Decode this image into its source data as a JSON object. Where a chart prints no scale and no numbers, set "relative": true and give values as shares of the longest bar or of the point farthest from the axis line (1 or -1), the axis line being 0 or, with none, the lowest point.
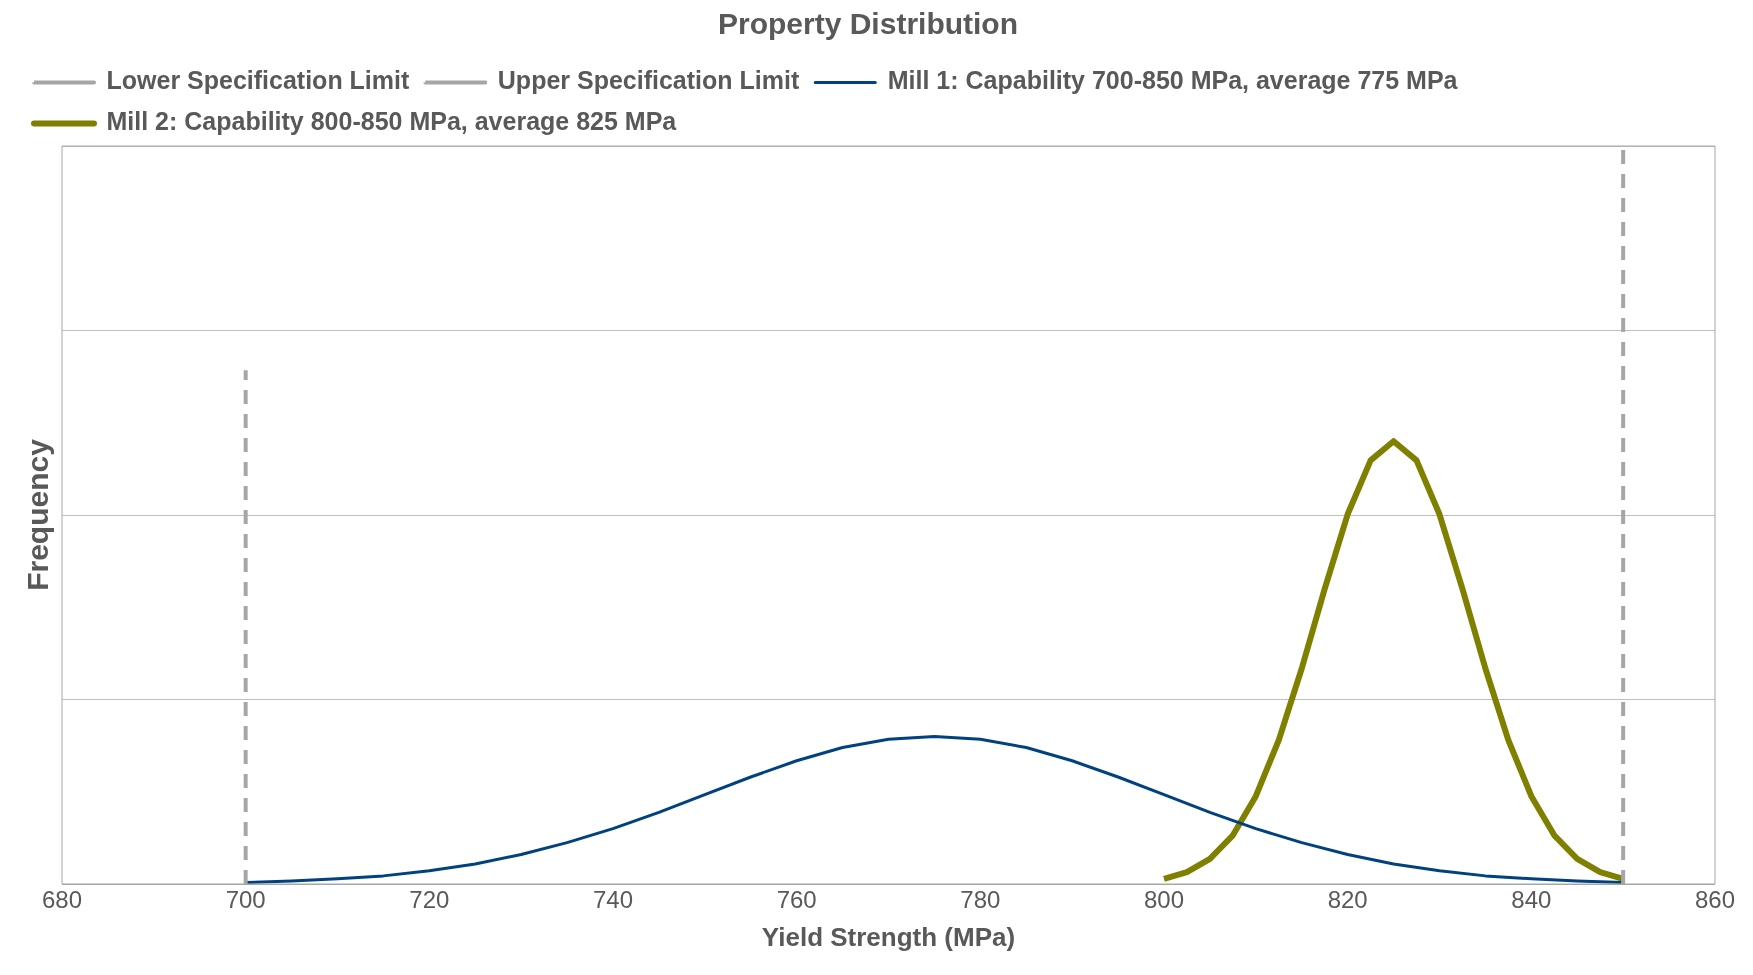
{
  "chart_data": {
    "type": "line",
    "title": "Property Distribution",
    "xlabel": "Yield Strength (MPa)",
    "ylabel": "Frequency",
    "relative": true,
    "xlim": [
      680,
      860
    ],
    "xticks": [
      680,
      700,
      720,
      740,
      760,
      780,
      800,
      820,
      840,
      860
    ],
    "grid": "y",
    "legend": "top left",
    "series": [
      {
        "name": "Lower Specification Limit",
        "color": "#a6a6a6",
        "line_style": "dashed",
        "x": [
          700,
          700
        ],
        "values": [
          0,
          0.696
        ]
      },
      {
        "name": "Upper Specification Limit",
        "color": "#a6a6a6",
        "line_style": "dashed",
        "x": [
          850,
          850
        ],
        "values": [
          0,
          1
        ]
      },
      {
        "name": "Mill 1: Capability 700-850 MPa, average 775 MPa",
        "color": "#00427f",
        "line_style": "solid",
        "x": [
          700,
          705,
          710,
          715,
          720,
          725,
          730,
          735,
          740,
          745,
          750,
          755,
          760,
          765,
          770,
          775,
          780,
          785,
          790,
          795,
          800,
          805,
          810,
          815,
          820,
          825,
          830,
          835,
          840,
          845,
          850
        ],
        "values": [
          0.002,
          0.004,
          0.007,
          0.011,
          0.018,
          0.027,
          0.04,
          0.056,
          0.075,
          0.097,
          0.121,
          0.145,
          0.167,
          0.185,
          0.196,
          0.2,
          0.196,
          0.185,
          0.167,
          0.145,
          0.121,
          0.097,
          0.075,
          0.056,
          0.04,
          0.027,
          0.018,
          0.011,
          0.007,
          0.004,
          0.002
        ]
      },
      {
        "name": "Mill 2: Capability 800-850 MPa, average 825 MPa",
        "color": "#7f7f00",
        "line_style": "solid",
        "x": [
          800,
          802.5,
          805,
          807.5,
          810,
          812.5,
          815,
          817.5,
          820,
          822.5,
          825,
          827.5,
          830,
          832.5,
          835,
          837.5,
          840,
          842.5,
          845,
          847.5,
          850
        ],
        "values": [
          0.007,
          0.016,
          0.034,
          0.066,
          0.119,
          0.195,
          0.292,
          0.4,
          0.501,
          0.574,
          0.6,
          0.574,
          0.501,
          0.4,
          0.292,
          0.195,
          0.119,
          0.066,
          0.034,
          0.016,
          0.007
        ]
      }
    ]
  }
}
